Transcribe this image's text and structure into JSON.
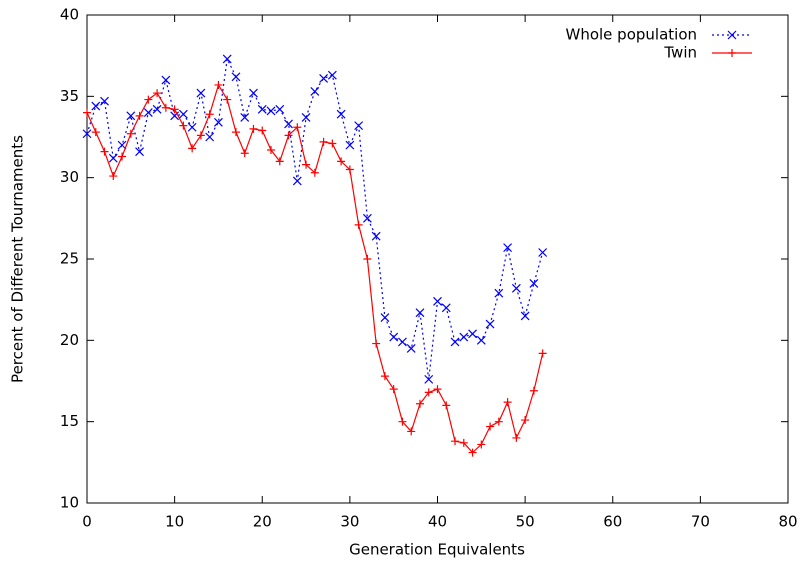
{
  "chart_data": {
    "type": "line",
    "xlabel": "Generation Equivalents",
    "ylabel": "Percent of Different Tournaments",
    "x": [
      0,
      1,
      2,
      3,
      4,
      5,
      6,
      7,
      8,
      9,
      10,
      11,
      12,
      13,
      14,
      15,
      16,
      17,
      18,
      19,
      20,
      21,
      22,
      23,
      24,
      25,
      26,
      27,
      28,
      29,
      30,
      31,
      32,
      33,
      34,
      35,
      36,
      37,
      38,
      39,
      40,
      41,
      42,
      43,
      44,
      45,
      46,
      47,
      48,
      49,
      50,
      51,
      52
    ],
    "series": [
      {
        "name": "Whole population",
        "color": "#0000ff",
        "line_style": "dotted",
        "marker": "x",
        "values": [
          32.7,
          34.4,
          34.7,
          31.2,
          32.0,
          33.8,
          31.6,
          34.0,
          34.2,
          36.0,
          33.8,
          33.9,
          33.1,
          35.2,
          32.5,
          33.4,
          37.3,
          36.2,
          33.7,
          35.2,
          34.2,
          34.1,
          34.2,
          33.3,
          29.8,
          33.7,
          35.3,
          36.1,
          36.3,
          33.9,
          32.0,
          33.2,
          27.5,
          26.4,
          21.4,
          20.2,
          19.9,
          19.5,
          21.7,
          17.6,
          22.4,
          22.0,
          19.9,
          20.2,
          20.4,
          20.0,
          21.0,
          22.9,
          25.7,
          23.2,
          21.5,
          23.5,
          25.4
        ]
      },
      {
        "name": "Twin",
        "color": "#ff0000",
        "line_style": "solid",
        "marker": "+",
        "values": [
          34.0,
          32.8,
          31.6,
          30.1,
          31.3,
          32.7,
          33.8,
          34.8,
          35.2,
          34.3,
          34.2,
          33.2,
          31.8,
          32.6,
          33.9,
          35.7,
          34.8,
          32.8,
          31.5,
          33.0,
          32.9,
          31.7,
          31.0,
          32.6,
          33.1,
          30.8,
          30.3,
          32.2,
          32.1,
          31.0,
          30.5,
          27.1,
          25.0,
          19.8,
          17.8,
          17.0,
          15.0,
          14.4,
          16.1,
          16.8,
          17.0,
          16.0,
          13.8,
          13.7,
          13.1,
          13.6,
          14.7,
          15.0,
          16.2,
          14.0,
          15.1,
          16.9,
          19.2
        ]
      }
    ],
    "xlim": [
      0,
      80
    ],
    "xticks": [
      0,
      10,
      20,
      30,
      40,
      50,
      60,
      70,
      80
    ],
    "ylim": [
      10,
      40
    ],
    "yticks": [
      10,
      15,
      20,
      25,
      30,
      35,
      40
    ],
    "legend": "top right"
  }
}
